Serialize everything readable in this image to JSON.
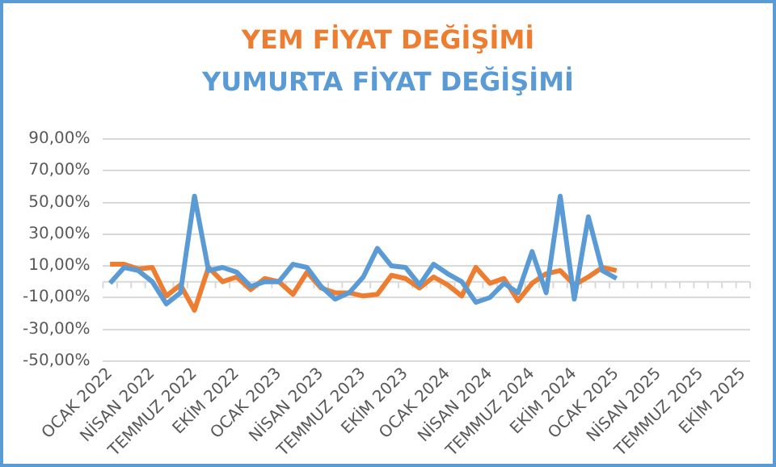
{
  "chart_data": {
    "type": "line",
    "categories": [
      "OCAK 2022",
      null,
      null,
      "NİSAN 2022",
      null,
      null,
      "TEMMUZ 2022",
      null,
      null,
      "EKİM 2022",
      null,
      null,
      "OCAK 2023",
      null,
      null,
      "NİSAN 2023",
      null,
      null,
      "TEMMUZ 2023",
      null,
      null,
      "EKİM 2023",
      null,
      null,
      "OCAK 2024",
      null,
      null,
      "NİSAN 2024",
      null,
      null,
      "TEMMUZ 2024",
      null,
      null,
      "EKİM 2024",
      null,
      null,
      "OCAK 2025",
      null,
      null,
      "NİSAN 2025",
      null,
      null,
      "TEMMUZ 2025",
      null,
      null,
      "EKİM 2025"
    ],
    "series": [
      {
        "name": "YUMURTA FİYAT DEĞİŞİMİ",
        "color": "#5b9bd5",
        "values": [
          -1,
          9,
          7,
          0,
          -14,
          -7,
          54,
          7,
          9,
          6,
          -3,
          0,
          0,
          11,
          9,
          -3,
          -11,
          -7,
          3,
          21,
          10,
          9,
          -2,
          11,
          5,
          0,
          -13,
          -10,
          -1,
          -7,
          19,
          -7,
          54,
          -11,
          41,
          7,
          2,
          null,
          null,
          null,
          null,
          null,
          null,
          null,
          null,
          null
        ]
      },
      {
        "name": "YEM FİYAT DEĞİŞİMİ",
        "color": "#ed7d31",
        "values": [
          11,
          11,
          8,
          9,
          -9,
          -2,
          -18,
          9,
          0,
          3,
          -5,
          2,
          0,
          -8,
          6,
          -4,
          -7,
          -7,
          -9,
          -8,
          4,
          2,
          -4,
          3,
          -2,
          -9,
          9,
          -1,
          2,
          -12,
          -1,
          5,
          7,
          -2,
          3,
          9,
          7,
          null,
          null,
          null,
          null,
          null,
          null,
          null,
          null,
          null
        ]
      }
    ],
    "ylim": [
      -50,
      90
    ],
    "yticks": [
      {
        "value": -50,
        "label": "-50,00%"
      },
      {
        "value": -30,
        "label": "-30,00%"
      },
      {
        "value": -10,
        "label": "-10,00%"
      },
      {
        "value": 10,
        "label": "10,00%"
      },
      {
        "value": 30,
        "label": "30,00%"
      },
      {
        "value": 50,
        "label": "50,00%"
      },
      {
        "value": 70,
        "label": "70,00%"
      },
      {
        "value": 90,
        "label": "90,00%"
      }
    ],
    "grid": "y",
    "legend": "top",
    "marker": "none",
    "line_style": "solid"
  }
}
